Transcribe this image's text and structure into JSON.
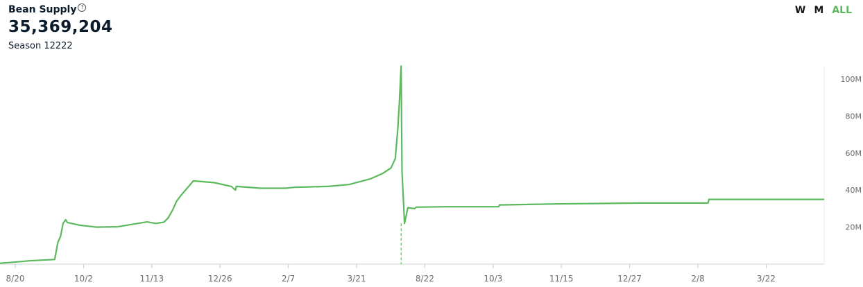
{
  "header": {
    "title": "Bean Supply",
    "help_icon": "question-circle-icon",
    "value": "35,369,204",
    "season": "Season 12222"
  },
  "range_buttons": [
    {
      "label": "W",
      "active": false
    },
    {
      "label": "M",
      "active": false
    },
    {
      "label": "ALL",
      "active": true
    }
  ],
  "colors": {
    "line": "#5cb85c",
    "text": "#0b1b2b",
    "active": "#5cb85c"
  },
  "chart_data": {
    "type": "line",
    "title": "Bean Supply",
    "xlabel": "",
    "ylabel": "",
    "ylim": [
      0,
      110000000
    ],
    "y_ticks": [
      {
        "value": 20000000,
        "label": "20M"
      },
      {
        "value": 40000000,
        "label": "40M"
      },
      {
        "value": 60000000,
        "label": "60M"
      },
      {
        "value": 80000000,
        "label": "80M"
      },
      {
        "value": 100000000,
        "label": "100M"
      }
    ],
    "x_ticks": [
      "8/20",
      "10/2",
      "11/13",
      "12/26",
      "2/7",
      "3/21",
      "8/22",
      "10/3",
      "11/15",
      "12/27",
      "2/8",
      "3/22"
    ],
    "grid": false,
    "marker_index": 47.7,
    "series": [
      {
        "x": [
          0,
          1.5,
          3.5,
          6.5,
          6.9,
          7.2,
          7.5,
          7.8,
          8,
          9.5,
          11.5,
          14,
          17.5,
          18.5,
          19.5,
          20,
          20.5,
          21,
          21.5,
          23,
          25.5,
          27.5,
          28,
          28.1,
          31,
          34,
          35,
          39,
          41.5,
          44,
          45.5,
          46.5,
          47,
          47.3,
          47.5,
          47.7,
          47.8,
          48.1,
          48.5,
          49.3,
          49.5,
          53,
          59.3,
          59.4,
          66,
          76,
          84.2,
          84.3,
          98
        ],
        "y": [
          500000,
          1000000,
          1800000,
          2500000,
          12000000,
          15000000,
          22000000,
          24000000,
          22500000,
          21000000,
          20000000,
          20200000,
          22800000,
          22000000,
          22700000,
          25000000,
          29000000,
          34000000,
          37000000,
          45000000,
          44000000,
          42000000,
          40000000,
          42000000,
          41000000,
          41000000,
          41500000,
          42000000,
          43000000,
          46000000,
          49000000,
          52000000,
          57000000,
          73000000,
          88000000,
          107000000,
          50000000,
          22000000,
          30500000,
          30000000,
          30800000,
          31000000,
          31000000,
          32000000,
          32500000,
          33000000,
          33000000,
          35000000,
          35000000
        ]
      }
    ]
  }
}
